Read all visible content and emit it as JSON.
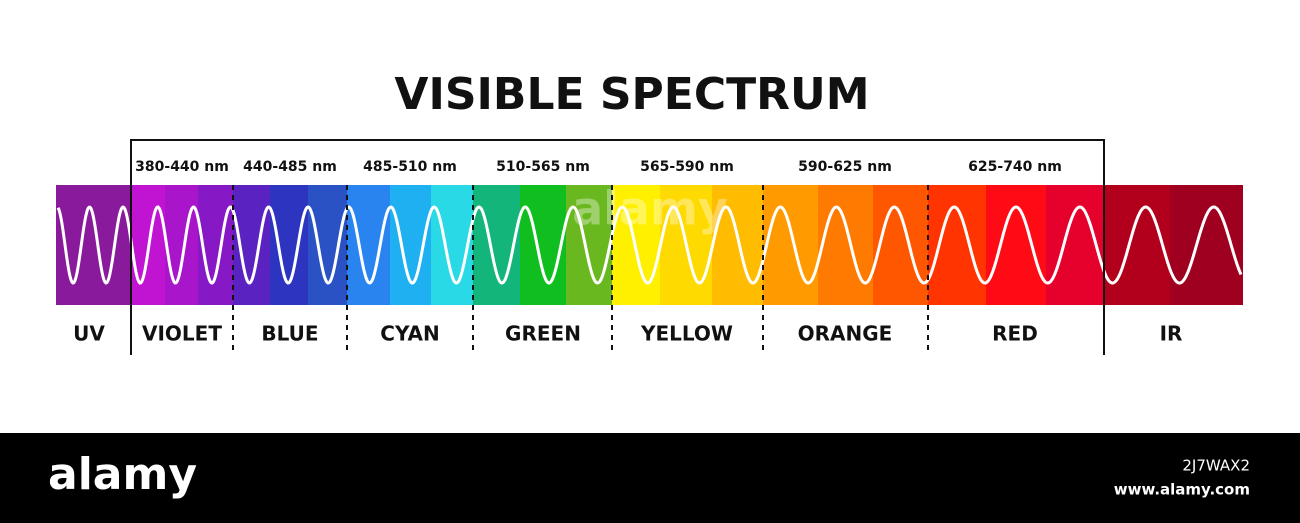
{
  "title": "VISIBLE SPECTRUM",
  "ranges": [
    "380-440 nm",
    "440-485 nm",
    "485-510 nm",
    "510-565 nm",
    "565-590 nm",
    "590-625 nm",
    "625-740 nm"
  ],
  "bands": [
    "UV",
    "VIOLET",
    "BLUE",
    "CYAN",
    "GREEN",
    "YELLOW",
    "ORANGE",
    "RED",
    "IR"
  ],
  "footer": {
    "brand": "alamy",
    "image_id": "2J7WAX2",
    "url": "www.alamy.com"
  }
}
